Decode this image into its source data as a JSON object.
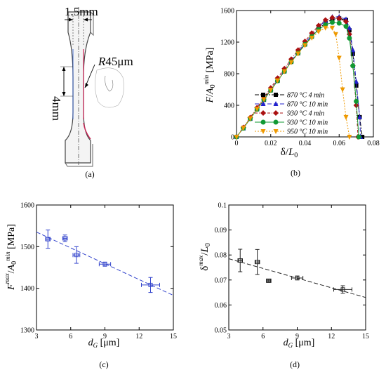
{
  "specimen": {
    "width_label": "1.5mm",
    "length_label": "4mm",
    "radius_prefix": "R",
    "radius_value": "45μm",
    "panel_label": "(a)"
  },
  "chart_data": [
    {
      "id": "b",
      "type": "line",
      "panel_label": "(b)",
      "xlabel": "δ/L0",
      "ylabel": "F/A0min [MPa]",
      "xlim": [
        0,
        0.08
      ],
      "ylim": [
        0,
        1600
      ],
      "xticks": [
        "0",
        "0.02",
        "0.04",
        "0.06",
        "0.08"
      ],
      "yticks": [
        "0",
        "400",
        "800",
        "1200",
        "1600"
      ],
      "legend_position": "bottom-center",
      "series": [
        {
          "name": "870 °C 4 min",
          "color": "#000000",
          "marker": "square",
          "dash": "6,2,2,2",
          "x": [
            0,
            0.004,
            0.008,
            0.012,
            0.016,
            0.02,
            0.024,
            0.028,
            0.032,
            0.036,
            0.04,
            0.044,
            0.048,
            0.052,
            0.056,
            0.06,
            0.064,
            0.066,
            0.068,
            0.07,
            0.072,
            0.0735
          ],
          "y": [
            0,
            110,
            230,
            350,
            470,
            590,
            710,
            830,
            950,
            1060,
            1170,
            1270,
            1370,
            1440,
            1490,
            1500,
            1480,
            1350,
            1050,
            650,
            250,
            0
          ]
        },
        {
          "name": "870 °C 10 min",
          "color": "#2222cc",
          "marker": "triangle",
          "dash": "6,3",
          "x": [
            0,
            0.004,
            0.008,
            0.012,
            0.016,
            0.02,
            0.024,
            0.028,
            0.032,
            0.036,
            0.04,
            0.044,
            0.048,
            0.052,
            0.056,
            0.06,
            0.064,
            0.066,
            0.068,
            0.07,
            0.072,
            0.0725
          ],
          "y": [
            0,
            110,
            235,
            355,
            475,
            600,
            720,
            840,
            960,
            1075,
            1185,
            1290,
            1390,
            1470,
            1520,
            1520,
            1490,
            1380,
            1100,
            700,
            250,
            0
          ]
        },
        {
          "name": "930 °C 4 min",
          "color": "#aa1111",
          "marker": "diamond",
          "dash": "4,2,1,2",
          "x": [
            0,
            0.004,
            0.008,
            0.012,
            0.016,
            0.02,
            0.024,
            0.028,
            0.032,
            0.036,
            0.04,
            0.044,
            0.048,
            0.052,
            0.056,
            0.06,
            0.064,
            0.066,
            0.068,
            0.07,
            0.071
          ],
          "y": [
            0,
            120,
            245,
            370,
            495,
            620,
            745,
            865,
            985,
            1100,
            1210,
            1315,
            1410,
            1480,
            1510,
            1500,
            1460,
            1300,
            900,
            400,
            0
          ]
        },
        {
          "name": "930 °C 10 min",
          "color": "#119933",
          "marker": "circle",
          "dash": "",
          "x": [
            0,
            0.004,
            0.008,
            0.012,
            0.016,
            0.02,
            0.024,
            0.028,
            0.032,
            0.036,
            0.04,
            0.044,
            0.048,
            0.052,
            0.056,
            0.06,
            0.064,
            0.066,
            0.068,
            0.07,
            0.0715
          ],
          "y": [
            0,
            110,
            230,
            350,
            470,
            590,
            710,
            830,
            950,
            1060,
            1170,
            1270,
            1360,
            1420,
            1450,
            1440,
            1400,
            1250,
            900,
            450,
            0
          ]
        },
        {
          "name": "950 °C 10 min",
          "color": "#ee9900",
          "marker": "triangle-down",
          "dash": "2,2",
          "x": [
            0,
            0.004,
            0.008,
            0.012,
            0.016,
            0.02,
            0.024,
            0.028,
            0.032,
            0.036,
            0.04,
            0.044,
            0.048,
            0.052,
            0.056,
            0.058,
            0.06,
            0.062,
            0.064,
            0.066
          ],
          "y": [
            0,
            115,
            235,
            355,
            475,
            595,
            715,
            830,
            945,
            1055,
            1160,
            1255,
            1335,
            1380,
            1380,
            1300,
            1000,
            600,
            250,
            0
          ]
        }
      ]
    },
    {
      "id": "c",
      "type": "scatter",
      "panel_label": "(c)",
      "xlabel": "dG [μm]",
      "ylabel": "Fmax/A0min [MPa]",
      "xlim": [
        3,
        15
      ],
      "ylim": [
        1300,
        1600
      ],
      "xticks": [
        "3",
        "6",
        "9",
        "12",
        "15"
      ],
      "yticks": [
        "1300",
        "1400",
        "1500",
        "1600"
      ],
      "color": "#3344cc",
      "points": [
        {
          "x": 4,
          "y": 1518,
          "xerr": 0.2,
          "yerr": 22
        },
        {
          "x": 5.5,
          "y": 1520,
          "xerr": 0.2,
          "yerr": 8
        },
        {
          "x": 6.5,
          "y": 1480,
          "xerr": 0.3,
          "yerr": 20
        },
        {
          "x": 9,
          "y": 1458,
          "xerr": 0.5,
          "yerr": 5
        },
        {
          "x": 13,
          "y": 1408,
          "xerr": 0.8,
          "yerr": 18
        }
      ],
      "fit": {
        "x": [
          3,
          15
        ],
        "y": [
          1535,
          1383
        ]
      }
    },
    {
      "id": "d",
      "type": "scatter",
      "panel_label": "(d)",
      "xlabel": "dG [μm]",
      "ylabel": "δmax/L0",
      "xlim": [
        3,
        15
      ],
      "ylim": [
        0.05,
        0.1
      ],
      "xticks": [
        "3",
        "6",
        "9",
        "12",
        "15"
      ],
      "yticks": [
        "0.05",
        "0.06",
        "0.07",
        "0.08",
        "0.09",
        "0.1"
      ],
      "color": "#222222",
      "points": [
        {
          "x": 4,
          "y": 0.0778,
          "xerr": 0.2,
          "yerr": 0.0045
        },
        {
          "x": 5.5,
          "y": 0.0772,
          "xerr": 0.2,
          "yerr": 0.005
        },
        {
          "x": 6.5,
          "y": 0.0697,
          "xerr": 0.2,
          "yerr": 0.0005
        },
        {
          "x": 9,
          "y": 0.0708,
          "xerr": 0.5,
          "yerr": 0.0008
        },
        {
          "x": 13,
          "y": 0.0662,
          "xerr": 0.8,
          "yerr": 0.0015
        }
      ],
      "fit": {
        "x": [
          3,
          15
        ],
        "y": [
          0.0785,
          0.063
        ]
      }
    }
  ]
}
